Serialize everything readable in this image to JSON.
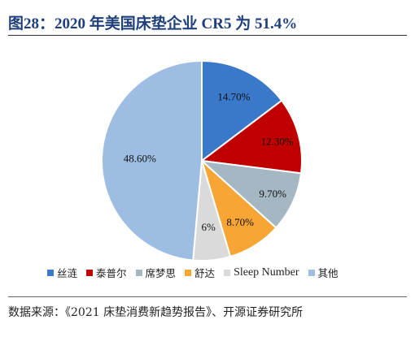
{
  "title": "图28：2020 年美国床垫企业  CR5  为  51.4%",
  "source": "数据来源：《2021 床垫消费新趋势报告》、开源证券研究所",
  "chart_data": {
    "type": "pie",
    "title": "图28：2020 年美国床垫企业  CR5  为  51.4%",
    "start_angle_deg": 0,
    "direction": "clockwise",
    "legend_position": "bottom",
    "slices": [
      {
        "name": "丝涟",
        "value": 14.7,
        "label": "14.70%",
        "color": "#3a78c9"
      },
      {
        "name": "泰普尔",
        "value": 12.3,
        "label": "12.30%",
        "color": "#c00000"
      },
      {
        "name": "席梦思",
        "value": 9.7,
        "label": "9.70%",
        "color": "#a5b7c3"
      },
      {
        "name": "舒达",
        "value": 8.7,
        "label": "8.70%",
        "color": "#f7a535"
      },
      {
        "name": "Sleep Number",
        "value": 6,
        "label": "6%",
        "color": "#dadada"
      },
      {
        "name": "其他",
        "value": 48.6,
        "label": "48.60%",
        "color": "#9dbde3"
      }
    ]
  }
}
